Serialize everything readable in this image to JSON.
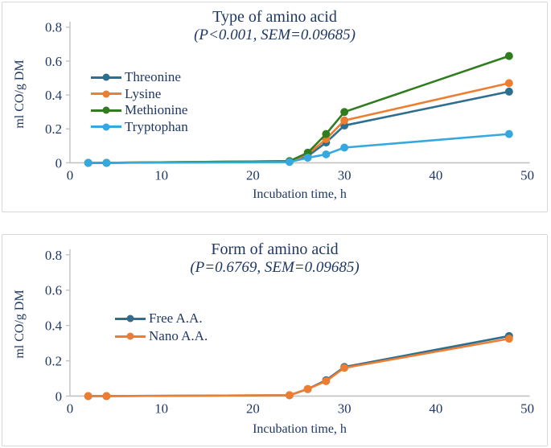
{
  "figure": {
    "text_color": "#1f3864",
    "axis_color": "#c2c2c2",
    "background": "#ffffff",
    "panel_border": "#d8d8d8"
  },
  "chart_data": [
    {
      "type": "line",
      "title": "Type of amino acid",
      "subtitle": "(P<0.001, SEM=0.09685)",
      "ylabel": "ml CO/g DM",
      "xlabel": "Incubation time, h",
      "xlim": [
        0,
        50
      ],
      "ylim": [
        0,
        0.8
      ],
      "xticks": [
        0,
        10,
        20,
        30,
        40,
        50
      ],
      "xtick_labels": [
        "0",
        "10",
        "20",
        "30",
        "40",
        "50"
      ],
      "yticks": [
        0,
        0.2,
        0.4,
        0.6,
        0.8
      ],
      "ytick_labels": [
        "0",
        "0.2",
        "0.4",
        "0.6",
        "0.8"
      ],
      "grid": false,
      "legend_pos": "inside-left-middle",
      "x": [
        2,
        4,
        24,
        26,
        28,
        30,
        48
      ],
      "series": [
        {
          "name": "Threonine",
          "color": "#2e6e8e",
          "values": [
            0,
            0,
            0.01,
            0.04,
            0.12,
            0.22,
            0.42
          ]
        },
        {
          "name": "Lysine",
          "color": "#ed7d31",
          "values": [
            0,
            0,
            0.01,
            0.05,
            0.14,
            0.25,
            0.47
          ]
        },
        {
          "name": "Methionine",
          "color": "#2f7d1f",
          "values": [
            0,
            0,
            0.01,
            0.06,
            0.17,
            0.3,
            0.63
          ]
        },
        {
          "name": "Tryptophan",
          "color": "#35a8e0",
          "values": [
            0,
            0,
            0.005,
            0.03,
            0.05,
            0.09,
            0.17
          ]
        }
      ]
    },
    {
      "type": "line",
      "title": "Form of amino acid",
      "subtitle": "(P=0.6769, SEM=0.09685)",
      "ylabel": "ml CO/g DM",
      "xlabel": "Incubation time, h",
      "xlim": [
        0,
        50
      ],
      "ylim": [
        0,
        0.8
      ],
      "xticks": [
        0,
        10,
        20,
        30,
        40,
        50
      ],
      "xtick_labels": [
        "0",
        "10",
        "20",
        "30",
        "40",
        "50"
      ],
      "yticks": [
        0,
        0.2,
        0.4,
        0.6,
        0.8
      ],
      "ytick_labels": [
        "0",
        "0.2",
        "0.4",
        "0.6",
        "0.8"
      ],
      "grid": false,
      "legend_pos": "inside-left-middle",
      "x": [
        2,
        4,
        24,
        26,
        28,
        30,
        48
      ],
      "series": [
        {
          "name": "Free A.A.",
          "color": "#2e6e8e",
          "values": [
            0,
            0,
            0.005,
            0.04,
            0.09,
            0.165,
            0.34
          ]
        },
        {
          "name": "Nano A.A.",
          "color": "#ed7d31",
          "values": [
            0,
            0,
            0.005,
            0.04,
            0.085,
            0.16,
            0.325
          ]
        }
      ]
    }
  ]
}
